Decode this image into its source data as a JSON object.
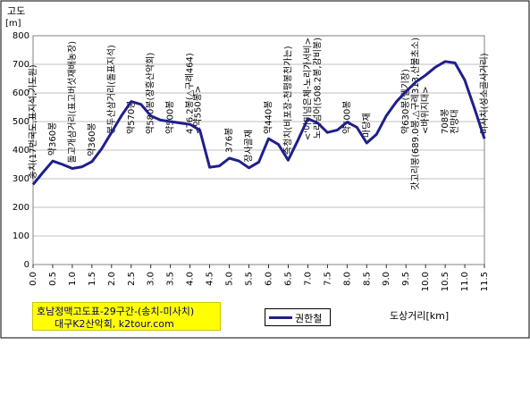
{
  "chart_data": {
    "type": "line",
    "ylabel": "고도",
    "ylabel_unit": "[m]",
    "xlabel": "도상거리[km]",
    "ylim": [
      0,
      800
    ],
    "xlim": [
      0,
      11.5
    ],
    "yticks": [
      "0",
      "100",
      "200",
      "300",
      "400",
      "500",
      "600",
      "700",
      "800"
    ],
    "xticks": [
      "0.0",
      "0.5",
      "1.0",
      "1.5",
      "2.0",
      "2.5",
      "3.0",
      "3.5",
      "4.0",
      "4.5",
      "5.0",
      "5.5",
      "6.0",
      "6.5",
      "7.0",
      "7.5",
      "8.0",
      "8.5",
      "9.0",
      "9.5",
      "10.0",
      "10.5",
      "11.0",
      "11.5"
    ],
    "grid": true,
    "legend_position": "bottom",
    "series": [
      {
        "name": "권한철",
        "color": "#1f1f8c",
        "x": [
          0.0,
          0.25,
          0.5,
          0.75,
          1.0,
          1.25,
          1.5,
          1.75,
          2.0,
          2.25,
          2.5,
          2.75,
          3.0,
          3.25,
          3.5,
          3.75,
          4.0,
          4.25,
          4.5,
          4.75,
          5.0,
          5.25,
          5.5,
          5.75,
          6.0,
          6.25,
          6.5,
          6.75,
          7.0,
          7.25,
          7.5,
          7.75,
          8.0,
          8.25,
          8.5,
          8.75,
          9.0,
          9.25,
          9.5,
          9.75,
          10.0,
          10.25,
          10.5,
          10.75,
          11.0,
          11.25,
          11.5
        ],
        "y": [
          280,
          322,
          362,
          350,
          336,
          342,
          360,
          405,
          462,
          520,
          570,
          560,
          520,
          505,
          500,
          495,
          490,
          470,
          340,
          345,
          372,
          362,
          338,
          358,
          440,
          420,
          365,
          435,
          510,
          495,
          462,
          470,
          498,
          480,
          425,
          455,
          520,
          568,
          605,
          638,
          662,
          690,
          710,
          705,
          645,
          545,
          440
        ]
      }
    ],
    "annotations": [
      {
        "x": 0.0,
        "text": "송치(17번국도,표지석,기도원)"
      },
      {
        "x": 0.5,
        "text": "약360봉"
      },
      {
        "x": 1.0,
        "text": "돌고개삼거리(표고버섯재배농장)"
      },
      {
        "x": 1.5,
        "text": "약360봉"
      },
      {
        "x": 2.0,
        "text": "봉두산삼거리(돌표지석)"
      },
      {
        "x": 2.5,
        "text": "약570봉"
      },
      {
        "x": 3.0,
        "text": "약580봉(장흥산악회)"
      },
      {
        "x": 3.5,
        "text": "약500봉"
      },
      {
        "x": 4.0,
        "text": "476.2봉(△구례464)"
      },
      {
        "x": 4.0,
        "text": "<약550봉>"
      },
      {
        "x": 5.0,
        "text": "376봉"
      },
      {
        "x": 5.5,
        "text": "장사골재"
      },
      {
        "x": 6.0,
        "text": "약440봉"
      },
      {
        "x": 6.5,
        "text": "즉청치(비포장-천평봉천가는)"
      },
      {
        "x": 7.0,
        "text": "<'이미넘은체-노리가서비>"
      },
      {
        "x": 7.25,
        "text": "노리넘어(508.2봉,강비봉)"
      },
      {
        "x": 8.0,
        "text": "약500봉"
      },
      {
        "x": 8.5,
        "text": "마당재"
      },
      {
        "x": 9.5,
        "text": "약630봉(헬기장)"
      },
      {
        "x": 9.75,
        "text": "갓고리봉(689.0봉,△구례313,산불초소)"
      },
      {
        "x": 10.0,
        "text": "<바위지대>"
      },
      {
        "x": 10.5,
        "text": "708봉"
      },
      {
        "x": 10.75,
        "text": "전망대"
      },
      {
        "x": 11.5,
        "text": "미사치(성소골사거리)"
      }
    ]
  },
  "title_box": {
    "line1": "호남정맥고도표-29구간-(송치-미사치)",
    "line2": "대구K2산악회, k2tour.com",
    "color": "#ffff00"
  }
}
